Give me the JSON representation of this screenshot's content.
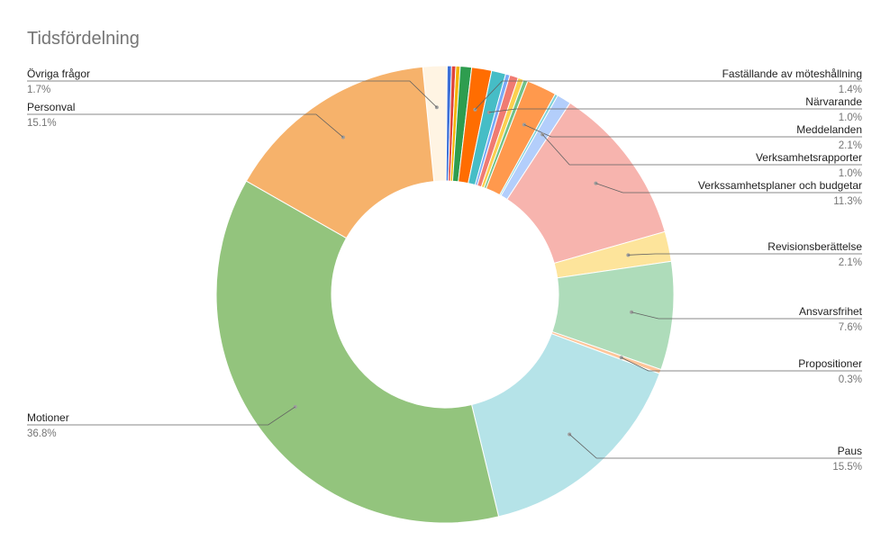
{
  "chart_data": {
    "type": "pie",
    "donut": true,
    "title": "Tidsfördelning",
    "series": [
      {
        "name": "Övriga frågor",
        "value": 1.7,
        "label": "1.7%",
        "color": "#fff4e3",
        "callout": true
      },
      {
        "name": "",
        "value": 0.3,
        "label": "",
        "color": "#3b6fd8",
        "callout": false
      },
      {
        "name": "",
        "value": 0.3,
        "label": "",
        "color": "#e0443a",
        "callout": false
      },
      {
        "name": "",
        "value": 0.3,
        "label": "",
        "color": "#f4b400",
        "callout": false
      },
      {
        "name": "",
        "value": 0.8,
        "label": "",
        "color": "#2e9d4f",
        "callout": false
      },
      {
        "name": "Faställande av möteshållning",
        "value": 1.4,
        "label": "1.4%",
        "color": "#ff6d01",
        "callout": true
      },
      {
        "name": "Närvarande",
        "value": 1.0,
        "label": "1.0%",
        "color": "#46bdc6",
        "callout": true
      },
      {
        "name": "",
        "value": 0.3,
        "label": "",
        "color": "#7baaf7",
        "callout": false
      },
      {
        "name": "",
        "value": 0.6,
        "label": "",
        "color": "#f07b72",
        "callout": false
      },
      {
        "name": "",
        "value": 0.4,
        "label": "",
        "color": "#fcd04f",
        "callout": false
      },
      {
        "name": "",
        "value": 0.3,
        "label": "",
        "color": "#71c287",
        "callout": false
      },
      {
        "name": "Meddelanden",
        "value": 2.1,
        "label": "2.1%",
        "color": "#ff994d",
        "callout": true
      },
      {
        "name": "",
        "value": 0.2,
        "label": "",
        "color": "#7ed1d7",
        "callout": false
      },
      {
        "name": "Verksamhetsrapporter",
        "value": 1.0,
        "label": "1.0%",
        "color": "#b3cefb",
        "callout": true
      },
      {
        "name": "Verkssamhetsplaner och budgetar",
        "value": 11.3,
        "label": "11.3%",
        "color": "#f7b4ae",
        "callout": true
      },
      {
        "name": "Revisionsberättelse",
        "value": 2.1,
        "label": "2.1%",
        "color": "#fde49b",
        "callout": true
      },
      {
        "name": "Ansvarsfrihet",
        "value": 7.6,
        "label": "7.6%",
        "color": "#aedcba",
        "callout": true
      },
      {
        "name": "Propositioner",
        "value": 0.3,
        "label": "0.3%",
        "color": "#ffc599",
        "callout": true
      },
      {
        "name": "Paus",
        "value": 15.5,
        "label": "15.5%",
        "color": "#b5e3e8",
        "callout": true
      },
      {
        "name": "Motioner",
        "value": 36.8,
        "label": "36.8%",
        "color": "#93c47d",
        "callout": true
      },
      {
        "name": "Personval",
        "value": 15.1,
        "label": "15.1%",
        "color": "#f6b26b",
        "callout": true
      }
    ]
  }
}
